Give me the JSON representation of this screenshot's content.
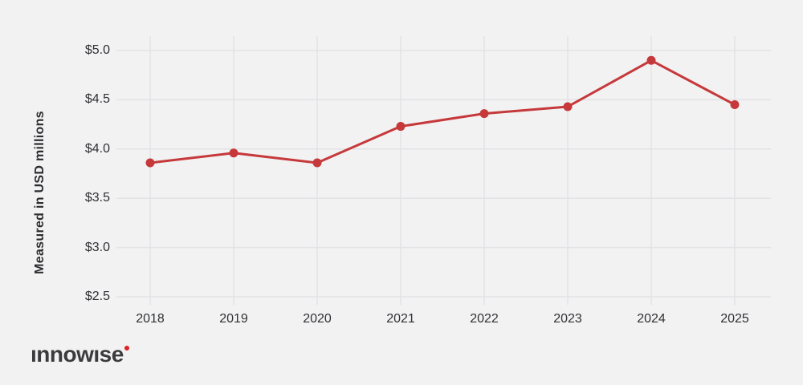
{
  "page": {
    "background": "#f2f2f3",
    "grid_color": "#e3e3e6"
  },
  "logo": {
    "text": "ınnowıse",
    "dot_color": "#dd2428"
  },
  "chart_data": {
    "type": "line",
    "title": "",
    "xlabel": "",
    "ylabel": "Measured in USD millions",
    "categories": [
      "2018",
      "2019",
      "2020",
      "2021",
      "2022",
      "2023",
      "2024",
      "2025"
    ],
    "series": [
      {
        "name": "USD millions",
        "color": "#c6393b",
        "values": [
          3.86,
          3.96,
          3.86,
          4.23,
          4.36,
          4.43,
          4.9,
          4.45
        ]
      }
    ],
    "y_ticks": [
      {
        "value": 5.0,
        "label": "$5.0"
      },
      {
        "value": 4.5,
        "label": "$4.5"
      },
      {
        "value": 4.0,
        "label": "$4.0"
      },
      {
        "value": 3.5,
        "label": "$3.5"
      },
      {
        "value": 3.0,
        "label": "$3.0"
      },
      {
        "value": 2.5,
        "label": "$2.5"
      }
    ],
    "ylim": [
      2.5,
      5.0
    ],
    "grid": true,
    "legend": "none",
    "markers": true
  }
}
